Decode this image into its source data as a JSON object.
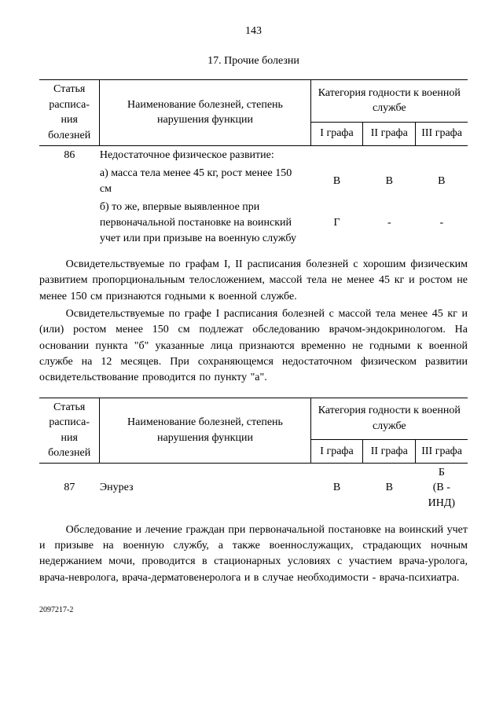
{
  "page_number": "143",
  "section_title": "17. Прочие болезни",
  "table_header": {
    "col_article": "Статья расписа-ния болезней",
    "col_name": "Наименование болезней, степень нарушения функции",
    "col_category": "Категория годности к военной службе",
    "sub_I": "I графа",
    "sub_II": "II графа",
    "sub_III": "III графа"
  },
  "table1": {
    "article": "86",
    "title": "Недостаточное физическое развитие:",
    "row_a": {
      "text": "а) масса тела менее 45 кг, рост менее 150 см",
      "g1": "В",
      "g2": "В",
      "g3": "В"
    },
    "row_b": {
      "text": "б) то же, впервые выявленное при первоначальной постановке на воинский учет или при призыве на военную службу",
      "g1": "Г",
      "g2": "-",
      "g3": "-"
    }
  },
  "para1": "Освидетельствуемые по графам I, II расписания болезней с хорошим физическим развитием пропорциональным телосложением, массой тела не менее 45 кг и ростом не менее 150 см признаются годными к военной службе.",
  "para2": "Освидетельствуемые по графе I расписания болезней с массой тела менее 45 кг и (или) ростом менее 150 см подлежат обследованию врачом-эндокринологом. На основании пункта \"б\" указанные лица признаются временно не годными к военной службе на 12 месяцев. При сохраняющемся недостаточном физическом развитии освидетельствование проводится по пункту \"а\".",
  "table2": {
    "article": "87",
    "title": "Энурез",
    "g1": "В",
    "g2": "В",
    "g3": "Б",
    "g3_note": "(В - ИНД)"
  },
  "para3": "Обследование и лечение граждан при первоначальной постановке на воинский учет и призыве на военную службу, а также военнослужащих, страдающих ночным недержанием мочи, проводится в стационарных условиях с участием врача-уролога, врача-невролога, врача-дерматовенеролога и в случае необходимости - врача-психиатра.",
  "footer_code": "2097217-2"
}
